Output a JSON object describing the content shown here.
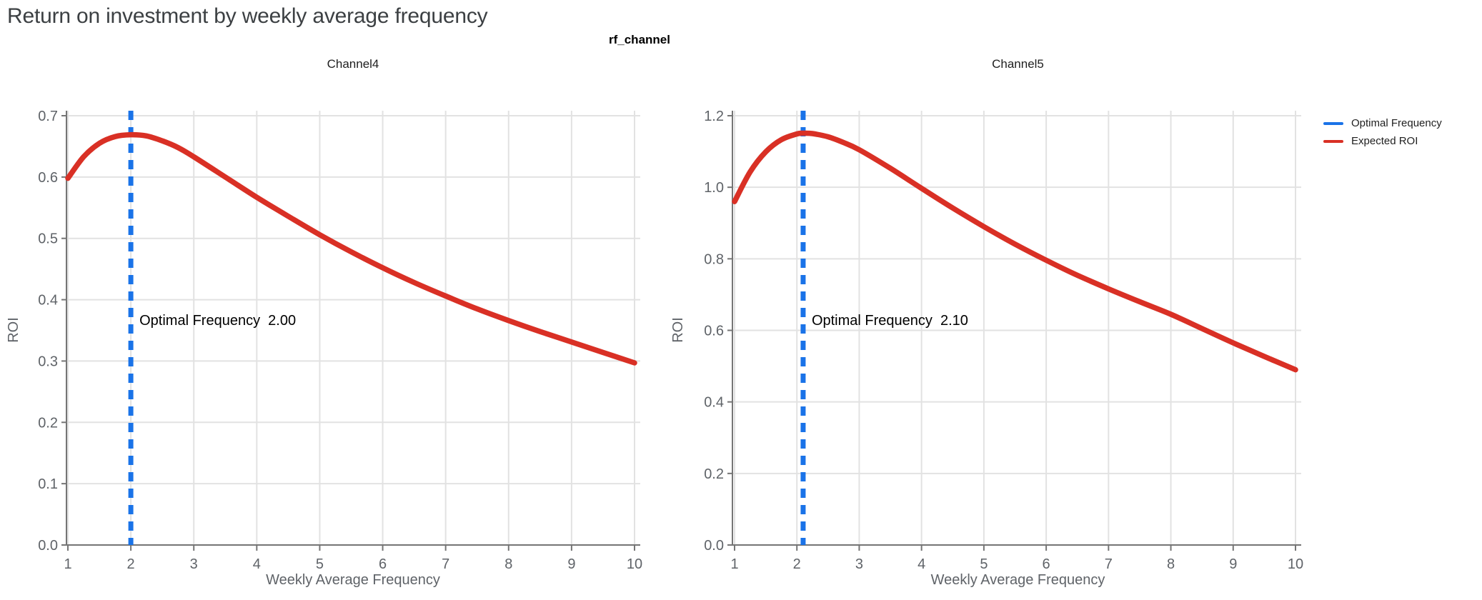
{
  "header": {
    "title": "Return on investment by weekly average frequency",
    "facet_title": "rf_channel"
  },
  "legend": {
    "position": "top-right",
    "items": [
      {
        "label": "Optimal Frequency",
        "color": "#1a73e8",
        "style": "solid-line"
      },
      {
        "label": "Expected ROI",
        "color": "#d93025",
        "style": "solid-line"
      }
    ]
  },
  "colors": {
    "optimal_frequency_blue": "#1a73e8",
    "expected_roi_red": "#d93025",
    "gridline": "#e2e2e2",
    "axis_line": "#757575",
    "tick_label": "#5f6368",
    "page_title": "#3c4043"
  },
  "chart_data": [
    {
      "type": "line",
      "panel": "Channel4",
      "xlabel": "Weekly Average Frequency",
      "ylabel": "ROI",
      "xlim": [
        1,
        10
      ],
      "ylim": [
        0.0,
        0.7
      ],
      "x_ticks": [
        1,
        2,
        3,
        4,
        5,
        6,
        7,
        8,
        9,
        10
      ],
      "y_tick_labels": [
        "0.0",
        "0.1",
        "0.2",
        "0.3",
        "0.4",
        "0.5",
        "0.6",
        "0.7"
      ],
      "grid": true,
      "optimal_frequency": 2.0,
      "annotation": "Optimal Frequency  2.00",
      "series": [
        {
          "name": "Expected ROI",
          "x": [
            1,
            1.25,
            1.5,
            1.75,
            2,
            2.25,
            2.5,
            2.75,
            3,
            3.5,
            4,
            4.5,
            5,
            5.5,
            6,
            6.5,
            7,
            7.5,
            8,
            8.5,
            9,
            9.5,
            10
          ],
          "y": [
            0.598,
            0.633,
            0.655,
            0.666,
            0.669,
            0.667,
            0.659,
            0.648,
            0.633,
            0.6,
            0.567,
            0.536,
            0.506,
            0.478,
            0.452,
            0.428,
            0.406,
            0.385,
            0.366,
            0.348,
            0.331,
            0.314,
            0.297
          ]
        }
      ]
    },
    {
      "type": "line",
      "panel": "Channel5",
      "xlabel": "Weekly Average Frequency",
      "ylabel": "ROI",
      "xlim": [
        1,
        10
      ],
      "ylim": [
        0.0,
        1.2
      ],
      "x_ticks": [
        1,
        2,
        3,
        4,
        5,
        6,
        7,
        8,
        9,
        10
      ],
      "y_tick_labels": [
        "0.0",
        "0.2",
        "0.4",
        "0.6",
        "0.8",
        "1.0",
        "1.2"
      ],
      "grid": true,
      "optimal_frequency": 2.1,
      "annotation": "Optimal Frequency  2.10",
      "series": [
        {
          "name": "Expected ROI",
          "x": [
            1,
            1.25,
            1.5,
            1.75,
            2,
            2.1,
            2.25,
            2.5,
            2.75,
            3,
            3.5,
            4,
            4.5,
            5,
            5.5,
            6,
            6.5,
            7,
            7.5,
            8,
            8.5,
            9,
            9.5,
            10
          ],
          "y": [
            0.96,
            1.043,
            1.099,
            1.133,
            1.149,
            1.151,
            1.15,
            1.141,
            1.125,
            1.105,
            1.053,
            0.997,
            0.942,
            0.89,
            0.841,
            0.796,
            0.754,
            0.716,
            0.68,
            0.645,
            0.605,
            0.565,
            0.527,
            0.49
          ]
        }
      ]
    }
  ]
}
